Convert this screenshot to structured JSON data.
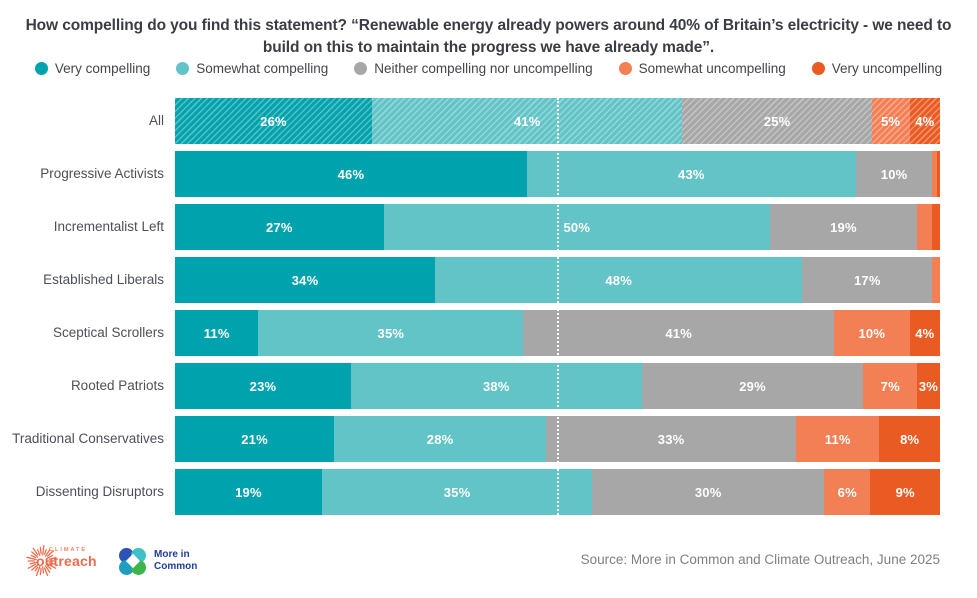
{
  "title": "How compelling do you find this statement? “Renewable energy already powers around 40% of Britain’s electricity - we need to build on this to maintain the progress we have already made”.",
  "legend": [
    {
      "label": "Very compelling",
      "color": "#00a3ad"
    },
    {
      "label": "Somewhat compelling",
      "color": "#62c4c6"
    },
    {
      "label": "Neither compelling nor uncompelling",
      "color": "#a7a7a7"
    },
    {
      "label": "Somewhat uncompelling",
      "color": "#f37f55"
    },
    {
      "label": "Very uncompelling",
      "color": "#ea5b23"
    }
  ],
  "chart_data": {
    "type": "bar",
    "stacked": true,
    "orientation": "horizontal",
    "units": "%",
    "title": "How compelling do you find this statement? “Renewable energy already powers around 40% of Britain’s electricity - we need to build on this to maintain the progress we have already made”.",
    "categories": [
      "All",
      "Progressive Activists",
      "Incrementalist Left",
      "Established Liberals",
      "Sceptical Scrollers",
      "Rooted Patriots",
      "Traditional Conservatives",
      "Dissenting Disruptors"
    ],
    "series": [
      {
        "name": "Very compelling",
        "values": [
          26,
          46,
          27,
          34,
          11,
          23,
          21,
          19
        ]
      },
      {
        "name": "Somewhat compelling",
        "values": [
          41,
          43,
          50,
          48,
          35,
          38,
          28,
          35
        ]
      },
      {
        "name": "Neither compelling nor uncompelling",
        "values": [
          25,
          10,
          19,
          17,
          41,
          29,
          33,
          30
        ]
      },
      {
        "name": "Somewhat uncompelling",
        "values": [
          5,
          1,
          2,
          1,
          10,
          7,
          11,
          6
        ]
      },
      {
        "name": "Very uncompelling",
        "values": [
          4,
          0,
          1,
          0,
          4,
          3,
          8,
          9
        ]
      }
    ],
    "xlim": [
      0,
      100
    ],
    "legend_position": "top",
    "grid": false,
    "reference_line": {
      "value": 50,
      "style": "white dotted vertical"
    },
    "highlighted_category": "All (diagonal hatch pattern)",
    "value_label_rule": "white bold labels inside segments, hidden for segments below 3%"
  },
  "rows": [
    {
      "label": "All",
      "hatched": true,
      "segments": [
        {
          "value": 26,
          "text": "26%"
        },
        {
          "value": 41,
          "text": "41%"
        },
        {
          "value": 25,
          "text": "25%"
        },
        {
          "value": 5,
          "text": "5%"
        },
        {
          "value": 4,
          "text": "4%"
        }
      ]
    },
    {
      "label": "Progressive Activists",
      "hatched": false,
      "segments": [
        {
          "value": 46,
          "text": "46%"
        },
        {
          "value": 43,
          "text": "43%"
        },
        {
          "value": 10,
          "text": "10%"
        },
        {
          "value": 0.6,
          "text": ""
        },
        {
          "value": 0.4,
          "text": ""
        }
      ]
    },
    {
      "label": "Incrementalist Left",
      "hatched": false,
      "segments": [
        {
          "value": 27,
          "text": "27%"
        },
        {
          "value": 50,
          "text": "50%"
        },
        {
          "value": 19,
          "text": "19%"
        },
        {
          "value": 2,
          "text": ""
        },
        {
          "value": 1,
          "text": ""
        }
      ]
    },
    {
      "label": "Established Liberals",
      "hatched": false,
      "segments": [
        {
          "value": 34,
          "text": "34%"
        },
        {
          "value": 48,
          "text": "48%"
        },
        {
          "value": 17,
          "text": "17%"
        },
        {
          "value": 1,
          "text": ""
        },
        {
          "value": 0,
          "text": ""
        }
      ]
    },
    {
      "label": "Sceptical Scrollers",
      "hatched": false,
      "segments": [
        {
          "value": 11,
          "text": "11%"
        },
        {
          "value": 35,
          "text": "35%"
        },
        {
          "value": 41,
          "text": "41%"
        },
        {
          "value": 10,
          "text": "10%"
        },
        {
          "value": 4,
          "text": "4%"
        }
      ]
    },
    {
      "label": "Rooted Patriots",
      "hatched": false,
      "segments": [
        {
          "value": 23,
          "text": "23%"
        },
        {
          "value": 38,
          "text": "38%"
        },
        {
          "value": 29,
          "text": "29%"
        },
        {
          "value": 7,
          "text": "7%"
        },
        {
          "value": 3,
          "text": "3%"
        }
      ]
    },
    {
      "label": "Traditional Conservatives",
      "hatched": false,
      "segments": [
        {
          "value": 21,
          "text": "21%"
        },
        {
          "value": 28,
          "text": "28%"
        },
        {
          "value": 33,
          "text": "33%"
        },
        {
          "value": 11,
          "text": "11%"
        },
        {
          "value": 8,
          "text": "8%"
        }
      ]
    },
    {
      "label": "Dissenting Disruptors",
      "hatched": false,
      "segments": [
        {
          "value": 19,
          "text": "19%"
        },
        {
          "value": 35,
          "text": "35%"
        },
        {
          "value": 30,
          "text": "30%"
        },
        {
          "value": 6,
          "text": "6%"
        },
        {
          "value": 9,
          "text": "9%"
        }
      ]
    }
  ],
  "footer": {
    "source": "Source: More in Common and Climate Outreach, June 2025",
    "climate_outreach_logo": {
      "small_text": "CLIMATE",
      "main_text": "outreach"
    },
    "more_in_common_logo": {
      "line1": "More in",
      "line2": "Common"
    }
  }
}
